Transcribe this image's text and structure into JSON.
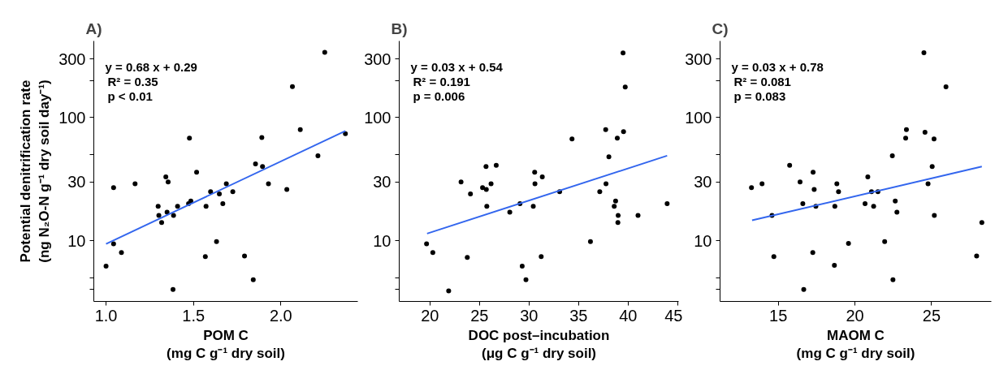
{
  "chart_data": [
    {
      "type": "scatter",
      "title": "A)",
      "xlabel": "POM C\n(mg C g⁻¹ dry soil)",
      "ylabel": "Potential denitrification rate\n(ng N₂O-N g⁻¹ dry soil day⁻¹)",
      "log": "y",
      "xlim": [
        0.93,
        2.44
      ],
      "xticks": [
        {
          "value": 1.0,
          "label": "1.0"
        },
        {
          "value": 1.5,
          "label": "1.5"
        },
        {
          "value": 2.0,
          "label": "2.0"
        }
      ],
      "ylim": [
        3.2,
        420
      ],
      "yticks": [
        {
          "value": 4,
          "label": null
        },
        {
          "value": 5,
          "label": null
        },
        10,
        30,
        {
          "value": 50,
          "label": null
        },
        100,
        {
          "value": 200,
          "label": null
        },
        300
      ],
      "grid": false,
      "marker": "circle",
      "annotations": [
        "y = 0.68 x + 0.29",
        "R² = 0.35",
        "p < 0.01"
      ],
      "series": [
        {
          "color": "#000000",
          "x": [
            2.251,
            2.066,
            2.111,
            1.477,
            1.891,
            2.212,
            1.855,
            1.895,
            1.518,
            1.342,
            1.355,
            1.166,
            1.043,
            1.688,
            1.929,
            2.034,
            1.598,
            1.648,
            1.725,
            1.485,
            1.472,
            1.668,
            1.298,
            1.409,
            1.572,
            1.302,
            1.349,
            1.386,
            1.318,
            1.043,
            1.632,
            1.088,
            1.0,
            1.568,
            1.792,
            1.842,
            1.383,
            2.369
          ],
          "values": [
            340,
            179,
            80,
            68,
            69,
            49,
            42,
            40,
            36,
            33,
            30,
            29,
            27,
            29,
            29,
            26,
            25,
            24,
            25,
            21,
            20,
            20,
            19,
            19,
            19,
            16,
            17,
            16,
            14,
            9.4,
            9.8,
            8.0,
            6.2,
            7.4,
            7.5,
            4.8,
            4.0,
            74
          ]
        },
        {
          "type": "line",
          "color": "#3366ee",
          "marker": "none",
          "x": [
            1.0,
            2.369
          ],
          "values": [
            9.4,
            78
          ]
        }
      ]
    },
    {
      "type": "scatter",
      "title": "B)",
      "xlabel": "DOC post–incubation\n(μg C g⁻¹ dry soil)",
      "log": "y",
      "xlim": [
        16.9,
        45.1
      ],
      "xticks": [
        20,
        25,
        30,
        35,
        40,
        45
      ],
      "ylim": [
        3.2,
        420
      ],
      "yticks": [
        {
          "value": 4,
          "label": null
        },
        {
          "value": 5,
          "label": null
        },
        10,
        30,
        {
          "value": 50,
          "label": null
        },
        100,
        {
          "value": 200,
          "label": null
        },
        300
      ],
      "grid": false,
      "marker": "circle",
      "annotations": [
        "y = 0.03 x + 0.54",
        "R² = 0.191",
        "p = 0.006"
      ],
      "series": [
        {
          "color": "#000000",
          "x": [
            39.49,
            39.71,
            37.74,
            39.54,
            34.34,
            38.91,
            38.06,
            26.69,
            25.66,
            30.57,
            31.34,
            23.14,
            26.17,
            30.6,
            37.77,
            25.31,
            25.69,
            33.09,
            37.14,
            24.09,
            29.09,
            38.74,
            25.74,
            30.43,
            38.6,
            28.06,
            39.0,
            41.0,
            38.97,
            43.94,
            19.66,
            36.2,
            20.29,
            23.77,
            31.23,
            29.31,
            29.69,
            21.89
          ],
          "values": [
            336,
            177,
            80,
            77,
            67,
            68,
            48,
            41,
            40,
            36,
            33,
            30,
            29,
            29,
            29,
            27,
            26,
            25,
            25,
            24,
            20,
            21,
            19,
            19,
            19,
            17,
            16,
            16,
            14,
            20,
            9.4,
            9.8,
            8.0,
            7.3,
            7.4,
            6.2,
            4.8,
            3.9
          ]
        },
        {
          "type": "line",
          "color": "#3366ee",
          "marker": "none",
          "x": [
            19.71,
            43.94
          ],
          "values": [
            11.4,
            49
          ]
        }
      ]
    },
    {
      "type": "scatter",
      "title": "C)",
      "xlabel": "MAOM C\n(mg C g⁻¹ dry soil)",
      "log": "y",
      "xlim": [
        11.2,
        28.9
      ],
      "xticks": [
        15,
        20,
        25
      ],
      "ylim": [
        3.2,
        420
      ],
      "yticks": [
        {
          "value": 4,
          "label": null
        },
        {
          "value": 5,
          "label": null
        },
        10,
        30,
        {
          "value": 50,
          "label": null
        },
        100,
        {
          "value": 200,
          "label": null
        },
        300
      ],
      "grid": false,
      "marker": "circle",
      "annotations": [
        "y = 0.03 x + 0.78",
        "R² = 0.081",
        "p = 0.083"
      ],
      "series": [
        {
          "color": "#000000",
          "x": [
            24.5,
            25.94,
            23.36,
            24.57,
            23.31,
            25.16,
            22.44,
            15.74,
            25.04,
            17.27,
            20.84,
            13.94,
            16.42,
            18.82,
            24.77,
            13.25,
            17.34,
            18.93,
            21.08,
            21.5,
            16.6,
            20.66,
            22.63,
            17.45,
            18.69,
            21.22,
            14.59,
            22.74,
            25.18,
            28.28,
            19.58,
            21.94,
            17.25,
            14.71,
            27.94,
            18.66,
            22.48,
            16.66
          ],
          "values": [
            337,
            178,
            80,
            76,
            68,
            67,
            49,
            41,
            40,
            36,
            33,
            29,
            30,
            29,
            29,
            27,
            26,
            25,
            25,
            25,
            20,
            20,
            21,
            19,
            19,
            19,
            16,
            17,
            16,
            14,
            9.5,
            9.8,
            8.0,
            7.4,
            7.5,
            6.3,
            4.8,
            4.0
          ]
        },
        {
          "type": "line",
          "color": "#3366ee",
          "marker": "none",
          "x": [
            13.29,
            28.28
          ],
          "values": [
            14.6,
            40
          ]
        }
      ]
    }
  ]
}
